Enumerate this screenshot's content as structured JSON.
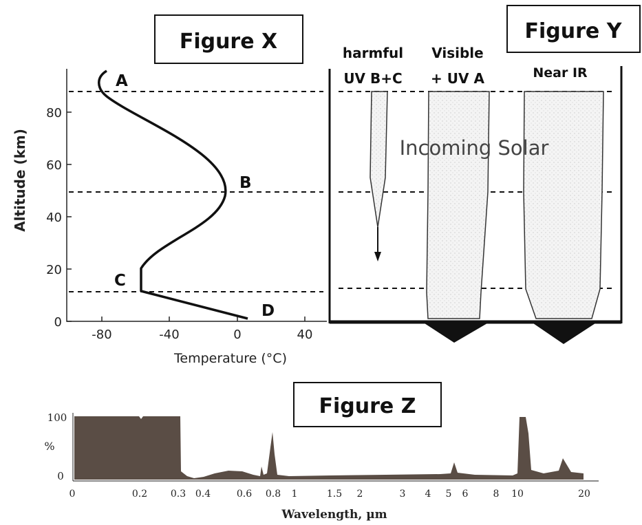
{
  "figure_x": {
    "title": "Figure X",
    "x_axis_label": "Temperature (°C)",
    "y_axis_label": "Altitude (km)",
    "x_ticks": [
      "-80",
      "-40",
      "0",
      "40"
    ],
    "y_ticks": [
      "0",
      "20",
      "40",
      "60",
      "80"
    ],
    "points": {
      "a": "A",
      "b": "B",
      "c": "C",
      "d": "D"
    }
  },
  "figure_y": {
    "title": "Figure Y",
    "uv_label_1": "harmful",
    "uv_label_2": "UV B+C",
    "visible_label_1": "Visible",
    "visible_label_2": "+ UV A",
    "ir_label": "Near IR",
    "caption": "Incoming Solar"
  },
  "figure_z": {
    "title": "Figure Z",
    "y_ticks": [
      "100",
      "%",
      "0"
    ],
    "x_ticks": [
      "0",
      "0.2",
      "0.3",
      "0.4",
      "0.6",
      "0.8",
      "1",
      "1.5",
      "2",
      "3",
      "4",
      "5",
      "6",
      "8",
      "10",
      "20"
    ],
    "x_axis_label": "Wavelength, µm"
  },
  "colors": {
    "ink": "#111111",
    "absorption_fill": "#5a4d45",
    "beam_shade": "#dcdcdc"
  }
}
